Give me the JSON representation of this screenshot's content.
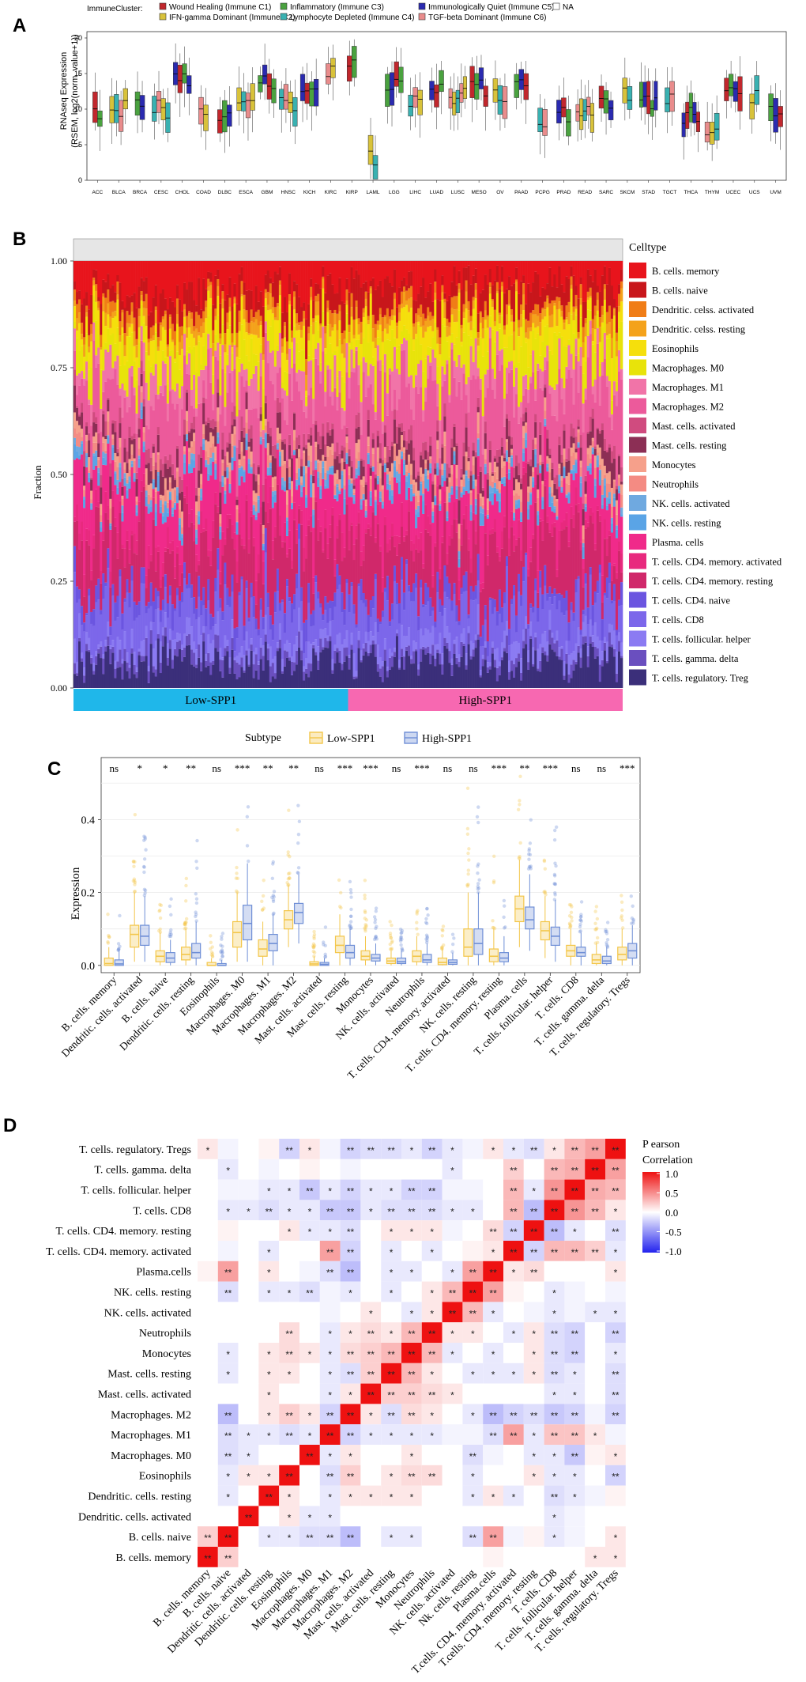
{
  "panel_labels": [
    "A",
    "B",
    "C",
    "D"
  ],
  "chart_data": [
    {
      "panel": "A",
      "type": "box",
      "ylabel_line1": "RNAseq Expression",
      "ylabel_line2": "(RSEM, log2(norm_value+1))",
      "ylim": [
        0,
        20
      ],
      "yticks": [
        "0",
        "5",
        "10",
        "15",
        "20"
      ],
      "legend_title": "ImmuneCluster:",
      "legend": [
        {
          "name": "Wound Healing (Immune C1)",
          "color": "#c1272d"
        },
        {
          "name": "IFN-gamma Dominant (Immune C2)",
          "color": "#d8c23a"
        },
        {
          "name": "Inflammatory (Immune C3)",
          "color": "#4aa23f"
        },
        {
          "name": "Lymphocyte Depleted (Immune C4)",
          "color": "#39b1b1"
        },
        {
          "name": "Immunologically Quiet (Immune C5)",
          "color": "#2a2ab0"
        },
        {
          "name": "TGF-beta Dominant (Immune C6)",
          "color": "#e98c8c"
        },
        {
          "name": "NA",
          "color": "#ffffff"
        }
      ],
      "categories": [
        "ACC",
        "BLCA",
        "BRCA",
        "CESC",
        "CHOL",
        "COAD",
        "DLBC",
        "ESCA",
        "GBM",
        "HNSC",
        "KICH",
        "KIRC",
        "KIRP",
        "LAML",
        "LGG",
        "LIHC",
        "LUAD",
        "LUSC",
        "MESO",
        "OV",
        "PAAD",
        "PCPG",
        "PRAD",
        "READ",
        "SARC",
        "SKCM",
        "STAD",
        "TGCT",
        "THCA",
        "THYM",
        "UCEC",
        "UCS",
        "UVM"
      ],
      "median_by_category": [
        9,
        10,
        11,
        10,
        14,
        10,
        9,
        10,
        14,
        11,
        13,
        15,
        16,
        3,
        13,
        11,
        13,
        12,
        13,
        12,
        13,
        8,
        9,
        10,
        11,
        12,
        11,
        11,
        9,
        6,
        12,
        12,
        10
      ]
    },
    {
      "panel": "B",
      "type": "stacked-bar",
      "ylabel": "Fraction",
      "yticks": [
        "0.00",
        "0.25",
        "0.50",
        "0.75",
        "1.00"
      ],
      "groups": [
        {
          "name": "Low-SPP1",
          "color": "#1fb7ea"
        },
        {
          "name": "High-SPP1",
          "color": "#f768b1"
        }
      ],
      "legend_title": "Celltype",
      "celltypes": [
        {
          "name": "B. cells. memory",
          "color": "#e8141c",
          "mean": 0.07
        },
        {
          "name": "B. cells. naive",
          "color": "#c8161b",
          "mean": 0.05
        },
        {
          "name": "Dendritic. celss. activated",
          "color": "#f07d17",
          "mean": 0.02
        },
        {
          "name": "Dendritic. celss. resting",
          "color": "#f4a21b",
          "mean": 0.02
        },
        {
          "name": "Eosinophils",
          "color": "#f5df0c",
          "mean": 0.04
        },
        {
          "name": "Macrophages. M0",
          "color": "#e8e30a",
          "mean": 0.06
        },
        {
          "name": "Macrophages. M1",
          "color": "#f174a8",
          "mean": 0.05
        },
        {
          "name": "Macrophages. M2",
          "color": "#ec5a9b",
          "mean": 0.1
        },
        {
          "name": "Mast. cells. activated",
          "color": "#d04b7f",
          "mean": 0.02
        },
        {
          "name": "Mast. cells. resting",
          "color": "#8c2f55",
          "mean": 0.03
        },
        {
          "name": "Monocytes",
          "color": "#f6a08b",
          "mean": 0.02
        },
        {
          "name": "Neutrophils",
          "color": "#f48b83",
          "mean": 0.02
        },
        {
          "name": "NK. cells. activated",
          "color": "#6fa9e0",
          "mean": 0.01
        },
        {
          "name": "NK. cells. resting",
          "color": "#5aa4e6",
          "mean": 0.02
        },
        {
          "name": "Plasma. cells",
          "color": "#f02a8a",
          "mean": 0.1
        },
        {
          "name": "T. cells. CD4. memory. activated",
          "color": "#e8297e",
          "mean": 0.03
        },
        {
          "name": "T. cells. CD4. memory. resting",
          "color": "#d0286a",
          "mean": 0.12
        },
        {
          "name": "T. cells. CD4. naive",
          "color": "#6b55e0",
          "mean": 0.03
        },
        {
          "name": "T. cells. CD8",
          "color": "#7c67ea",
          "mean": 0.08
        },
        {
          "name": "T. cells. follicular. helper",
          "color": "#8b7bf2",
          "mean": 0.03
        },
        {
          "name": "T. cells. gamma. delta",
          "color": "#6a4fbf",
          "mean": 0.02
        },
        {
          "name": "T. cells. regulatory. Treg",
          "color": "#3b2f7a",
          "mean": 0.06
        }
      ]
    },
    {
      "panel": "C",
      "type": "box",
      "legend_title": "Subtype",
      "series": [
        {
          "name": "Low-SPP1",
          "color": "#f3c64a"
        },
        {
          "name": "High-SPP1",
          "color": "#6f8fd6"
        }
      ],
      "ylabel": "Expression",
      "ylim": [
        -0.02,
        0.57
      ],
      "yticks": [
        "0.0",
        "0.2",
        "0.4"
      ],
      "categories": [
        "B. cells. memory",
        "Dendritic. cells. activated",
        "B. cells. naive",
        "Dendritic. cells. resting",
        "Eosinophils",
        "Macrophages. M0",
        "Macrophages. M1",
        "Macrophages. M2",
        "Mast. cells. activated",
        "Mast. cells. resting",
        "Monocytes",
        "NK. cells. activated",
        "Neutrophils",
        "T. cells. CD4. memory. activated",
        "NK. cells. resting",
        "T. cells. CD4. memory. resting",
        "Plasma. cells",
        "T. cells. follicular. helper",
        "T. cells. CD8",
        "T. cells. gamma. delta",
        "T. cells. regulatory. Tregs"
      ],
      "significance": [
        "ns",
        "*",
        "*",
        "**",
        "ns",
        "***",
        "**",
        "**",
        "ns",
        "***",
        "***",
        "ns",
        "***",
        "ns",
        "ns",
        "***",
        "**",
        "***",
        "ns",
        "ns",
        "***"
      ],
      "low": [
        [
          0,
          0,
          0.005,
          0.02,
          0.05
        ],
        [
          0.01,
          0.05,
          0.085,
          0.11,
          0.2
        ],
        [
          0,
          0.01,
          0.025,
          0.04,
          0.09
        ],
        [
          0,
          0.015,
          0.03,
          0.05,
          0.1
        ],
        [
          0,
          0,
          0,
          0.008,
          0.02
        ],
        [
          0.01,
          0.05,
          0.09,
          0.12,
          0.2
        ],
        [
          0,
          0.025,
          0.045,
          0.07,
          0.12
        ],
        [
          0.05,
          0.1,
          0.125,
          0.15,
          0.22
        ],
        [
          0,
          0,
          0.004,
          0.01,
          0.025
        ],
        [
          0,
          0.035,
          0.055,
          0.08,
          0.14
        ],
        [
          0,
          0.015,
          0.025,
          0.04,
          0.08
        ],
        [
          0,
          0.005,
          0.012,
          0.02,
          0.04
        ],
        [
          0,
          0.01,
          0.025,
          0.04,
          0.08
        ],
        [
          0,
          0.002,
          0.008,
          0.02,
          0.045
        ],
        [
          0,
          0.025,
          0.05,
          0.1,
          0.2
        ],
        [
          0,
          0.01,
          0.025,
          0.045,
          0.1
        ],
        [
          0.05,
          0.12,
          0.155,
          0.19,
          0.29
        ],
        [
          0.02,
          0.07,
          0.095,
          0.12,
          0.19
        ],
        [
          0,
          0.025,
          0.04,
          0.055,
          0.1
        ],
        [
          0,
          0.005,
          0.015,
          0.03,
          0.06
        ],
        [
          0,
          0.015,
          0.03,
          0.05,
          0.1
        ]
      ],
      "high": [
        [
          0,
          0,
          0.004,
          0.015,
          0.04
        ],
        [
          0.01,
          0.055,
          0.08,
          0.11,
          0.19
        ],
        [
          0,
          0.008,
          0.02,
          0.035,
          0.07
        ],
        [
          0,
          0.02,
          0.035,
          0.06,
          0.12
        ],
        [
          0,
          0,
          0,
          0.005,
          0.015
        ],
        [
          0.01,
          0.07,
          0.115,
          0.165,
          0.28
        ],
        [
          0,
          0.04,
          0.06,
          0.085,
          0.14
        ],
        [
          0.06,
          0.115,
          0.145,
          0.17,
          0.25
        ],
        [
          0,
          0,
          0.003,
          0.008,
          0.02
        ],
        [
          0,
          0.02,
          0.035,
          0.055,
          0.1
        ],
        [
          0,
          0.012,
          0.02,
          0.03,
          0.06
        ],
        [
          0,
          0.005,
          0.01,
          0.02,
          0.04
        ],
        [
          0,
          0.008,
          0.015,
          0.03,
          0.06
        ],
        [
          0,
          0.003,
          0.008,
          0.015,
          0.035
        ],
        [
          0,
          0.03,
          0.06,
          0.1,
          0.2
        ],
        [
          0,
          0.01,
          0.02,
          0.035,
          0.08
        ],
        [
          0.04,
          0.1,
          0.125,
          0.16,
          0.25
        ],
        [
          0.01,
          0.055,
          0.08,
          0.105,
          0.18
        ],
        [
          0,
          0.025,
          0.035,
          0.05,
          0.09
        ],
        [
          0,
          0.005,
          0.012,
          0.025,
          0.05
        ],
        [
          0,
          0.02,
          0.04,
          0.06,
          0.11
        ]
      ]
    },
    {
      "panel": "D",
      "type": "heatmap",
      "legend_title_line1": "P earson",
      "legend_title_line2": "Correlation",
      "legend_ticks": [
        "1.0",
        "0.5",
        "0.0",
        "-0.5",
        "-1.0"
      ],
      "rows_top_to_bottom": [
        "T. cells. regulatory. Tregs",
        "T. cells. gamma. delta",
        "T. cells. follicular. helper",
        "T. cells. CD8",
        "T. cells. CD4. memory. resting",
        "T. cells. CD4. memory. activated",
        "Plasma.cells",
        "NK. cells. resting",
        "NK. cells. activated",
        "Neutrophils",
        "Monocytes",
        "Mast. cells. resting",
        "Mast. cells. activated",
        "Macrophages. M2",
        "Macrophages. M1",
        "Macrophages. M0",
        "Eosinophils",
        "Dendritic. cells. resting",
        "Dendritic. cells. activated",
        "B. cells. naive",
        "B. cells. memory"
      ],
      "columns": [
        "B. cells. memory",
        "B. cells. naive",
        "Dendritic. cells. activated",
        "Dendritic. cells. resting",
        "Eosinophils",
        "Macrophages. M0",
        "Macrophages. M1",
        "Macrophages. M2",
        "Mast. cells. activated",
        "Mast. cells. resting",
        "Monocytes",
        "Neutrophils",
        "NK. cells. activated",
        "Nk. cells. resting",
        "Plasma.cells",
        "T.cells. CD4. memory. activated",
        "T.cells. CD4. memory. resting",
        "T. cells. CD8",
        "T. cells. follicular. helper",
        "T. cells. gamma. delta",
        "T. cells. regulatory. Tregs"
      ],
      "values": [
        [
          0.1,
          -0.05,
          0,
          0.05,
          -0.2,
          0.1,
          -0.05,
          -0.2,
          -0.15,
          -0.15,
          -0.1,
          -0.2,
          -0.1,
          -0.05,
          0.1,
          -0.1,
          -0.15,
          0.1,
          0.3,
          0.4,
          1.0
        ],
        [
          0,
          -0.1,
          0,
          -0.05,
          0,
          0.05,
          0,
          -0.05,
          0,
          0,
          0,
          0,
          -0.1,
          0,
          0,
          0.2,
          0,
          0.3,
          0.35,
          1.0,
          0.4
        ],
        [
          0,
          -0.05,
          -0.05,
          -0.1,
          -0.1,
          -0.25,
          -0.1,
          -0.2,
          -0.1,
          -0.1,
          -0.2,
          -0.2,
          -0.05,
          -0.05,
          0,
          0.3,
          -0.1,
          0.45,
          1.0,
          0.35,
          0.3
        ],
        [
          0,
          -0.1,
          -0.1,
          -0.15,
          -0.1,
          -0.1,
          -0.25,
          -0.25,
          -0.1,
          -0.15,
          -0.15,
          -0.15,
          -0.1,
          -0.1,
          0,
          0.3,
          -0.3,
          1.0,
          0.45,
          0.3,
          0.1
        ],
        [
          0,
          0.05,
          0,
          0,
          0.1,
          -0.1,
          -0.1,
          -0.15,
          0,
          0.1,
          0.1,
          0.1,
          -0.05,
          0,
          0.15,
          -0.2,
          1.0,
          -0.3,
          -0.1,
          0,
          -0.15
        ],
        [
          0,
          -0.05,
          0,
          -0.1,
          0,
          0,
          0.4,
          -0.2,
          0,
          -0.1,
          0,
          -0.1,
          0,
          0.05,
          0.1,
          1.0,
          -0.2,
          0.3,
          0.3,
          0.2,
          -0.1
        ],
        [
          0.05,
          0.4,
          0,
          0.1,
          0,
          -0.05,
          -0.15,
          -0.3,
          0,
          -0.1,
          -0.1,
          0,
          -0.1,
          0.4,
          1.0,
          0.1,
          0.15,
          0,
          0,
          0,
          0.1
        ],
        [
          0,
          -0.15,
          0,
          -0.1,
          -0.1,
          -0.15,
          -0.05,
          -0.1,
          0,
          -0.1,
          0,
          0.1,
          0.3,
          1.0,
          0.4,
          0.05,
          0,
          -0.1,
          -0.05,
          0,
          -0.05
        ],
        [
          0,
          0,
          0,
          0,
          0,
          0,
          -0.05,
          0,
          0.1,
          0,
          -0.1,
          0.1,
          1.0,
          0.3,
          -0.1,
          0,
          -0.05,
          -0.1,
          -0.05,
          -0.1,
          -0.1
        ],
        [
          0,
          0,
          0,
          0,
          0.15,
          0,
          -0.1,
          0.1,
          0.15,
          0.1,
          0.3,
          1.0,
          0.1,
          0.1,
          0,
          -0.1,
          0.1,
          -0.15,
          -0.2,
          0,
          -0.2
        ],
        [
          0,
          -0.1,
          0,
          0.1,
          0.15,
          0.1,
          -0.1,
          0.15,
          0.2,
          0.3,
          1.0,
          0.3,
          -0.1,
          0,
          -0.1,
          0,
          0.1,
          -0.15,
          -0.2,
          0,
          -0.1
        ],
        [
          0,
          -0.1,
          0,
          0.1,
          0.1,
          0,
          -0.1,
          -0.15,
          0.2,
          1.0,
          0.3,
          0.1,
          0,
          -0.1,
          -0.1,
          -0.1,
          0.1,
          -0.15,
          -0.1,
          0,
          -0.15
        ],
        [
          0,
          0,
          0,
          0.1,
          0,
          0,
          -0.1,
          0.1,
          1.0,
          0.2,
          0.2,
          0.15,
          0.1,
          0,
          0,
          0,
          0,
          -0.1,
          -0.1,
          0,
          -0.15
        ],
        [
          0,
          -0.3,
          0,
          0.1,
          0.2,
          0.1,
          -0.2,
          1.0,
          0.1,
          -0.15,
          0.15,
          0.1,
          0,
          -0.1,
          -0.3,
          -0.2,
          -0.15,
          -0.25,
          -0.2,
          -0.05,
          -0.2
        ],
        [
          0,
          -0.15,
          -0.1,
          -0.1,
          -0.15,
          -0.1,
          1.0,
          -0.2,
          -0.1,
          -0.1,
          -0.1,
          -0.1,
          -0.05,
          -0.05,
          -0.15,
          0.4,
          -0.1,
          0.25,
          0.25,
          0.1,
          -0.05
        ],
        [
          0,
          -0.15,
          -0.1,
          0,
          0,
          1.0,
          -0.1,
          0.1,
          0,
          0,
          0.1,
          0,
          0,
          -0.15,
          -0.05,
          0,
          -0.1,
          -0.1,
          -0.25,
          0.05,
          0.1
        ],
        [
          0,
          -0.1,
          0.1,
          0.1,
          1.0,
          0,
          -0.15,
          0.2,
          0,
          0.1,
          0.15,
          0.15,
          0,
          -0.1,
          0,
          0,
          0.1,
          -0.1,
          -0.1,
          0,
          -0.2
        ],
        [
          0,
          -0.1,
          0,
          1.0,
          0.1,
          0,
          -0.1,
          0.1,
          0.1,
          0.1,
          0.1,
          0,
          0,
          -0.1,
          0.1,
          -0.1,
          0,
          -0.15,
          -0.1,
          -0.05,
          0.05
        ],
        [
          0,
          0,
          1.0,
          0,
          0.1,
          -0.1,
          -0.1,
          0,
          0,
          0,
          0,
          0,
          0,
          0,
          0,
          0,
          0,
          -0.1,
          -0.05,
          0,
          0
        ],
        [
          0.2,
          1.0,
          0,
          -0.1,
          -0.1,
          -0.15,
          -0.15,
          -0.3,
          0,
          -0.1,
          -0.1,
          0,
          0,
          -0.15,
          0.4,
          -0.05,
          0.05,
          -0.1,
          -0.05,
          0,
          0.1
        ],
        [
          1.0,
          0.2,
          0,
          0,
          0,
          0,
          0,
          0,
          0,
          0,
          0,
          0,
          0,
          0,
          0.05,
          0,
          0,
          0,
          0,
          0.1,
          0.1
        ]
      ]
    }
  ]
}
